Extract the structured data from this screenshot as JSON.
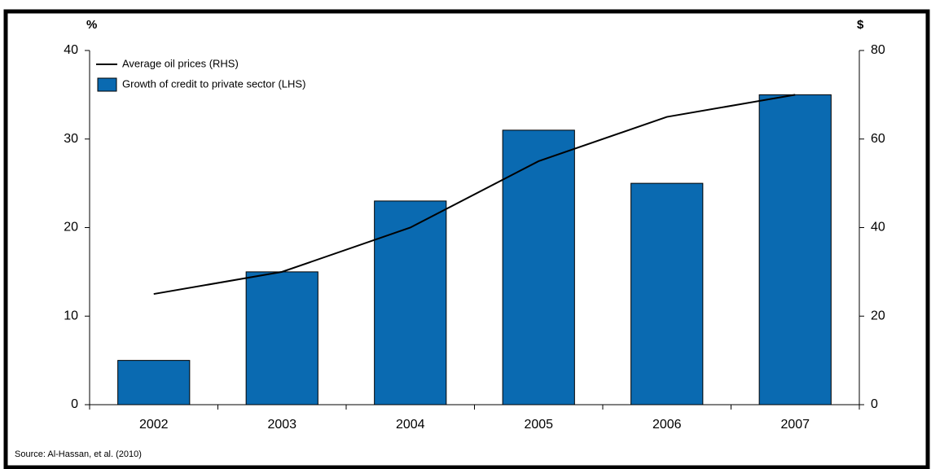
{
  "chart_data": {
    "type": "bar",
    "y_unit": "%",
    "y2_unit": "$",
    "categories": [
      "2002",
      "2003",
      "2004",
      "2005",
      "2006",
      "2007"
    ],
    "series": [
      {
        "name": "Average oil prices (RHS)",
        "type": "line",
        "color": "#000000",
        "axis": "y2",
        "values": [
          25,
          30,
          40,
          55,
          65,
          70
        ]
      },
      {
        "name": "Growth of credit to private sector (LHS)",
        "type": "bar",
        "color": "#0a6ab1",
        "values": [
          5,
          15,
          23,
          31,
          25,
          35
        ]
      }
    ],
    "ylim": [
      0,
      40
    ],
    "yticks": [
      0,
      10,
      20,
      30,
      40
    ],
    "y2lim": [
      0,
      80
    ],
    "y2ticks": [
      0,
      20,
      40,
      60,
      80
    ],
    "legend": "upper-left",
    "source": "Source:   Al-Hassan, et al. (2010)"
  }
}
